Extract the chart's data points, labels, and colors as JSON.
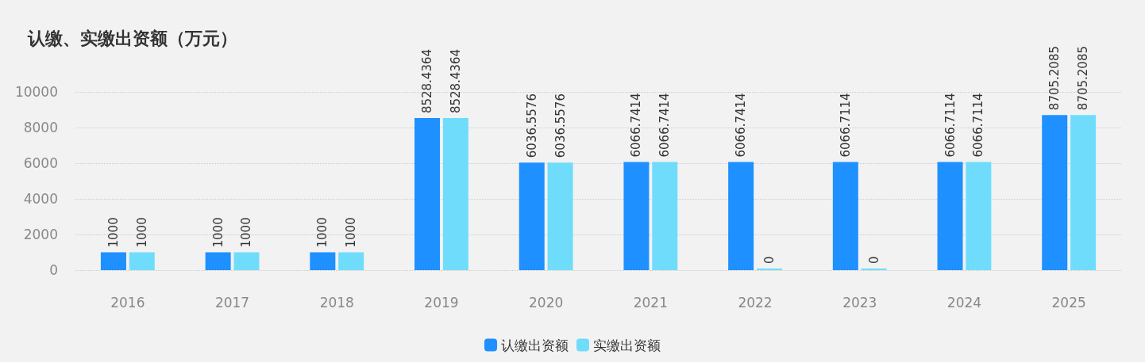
{
  "chart_data": {
    "type": "bar",
    "title": "认缴、实缴出资额（万元）",
    "categories": [
      "2016",
      "2017",
      "2018",
      "2019",
      "2020",
      "2021",
      "2022",
      "2023",
      "2024",
      "2025"
    ],
    "series": [
      {
        "name": "认缴出资额",
        "color": "#1e90ff",
        "values": [
          1000,
          1000,
          1000,
          8528.4364,
          6036.5576,
          6066.7414,
          6066.7414,
          6066.7114,
          6066.7114,
          8705.2085
        ]
      },
      {
        "name": "实缴出资额",
        "color": "#70dcfc",
        "values": [
          1000,
          1000,
          1000,
          8528.4364,
          6036.5576,
          6066.7414,
          0,
          0,
          6066.7114,
          8705.2085
        ]
      }
    ],
    "ylim": [
      0,
      10000
    ],
    "yticks": [
      0,
      2000,
      4000,
      6000,
      8000,
      10000
    ],
    "grid": "y",
    "legend": "bottom",
    "data_labels": true
  }
}
